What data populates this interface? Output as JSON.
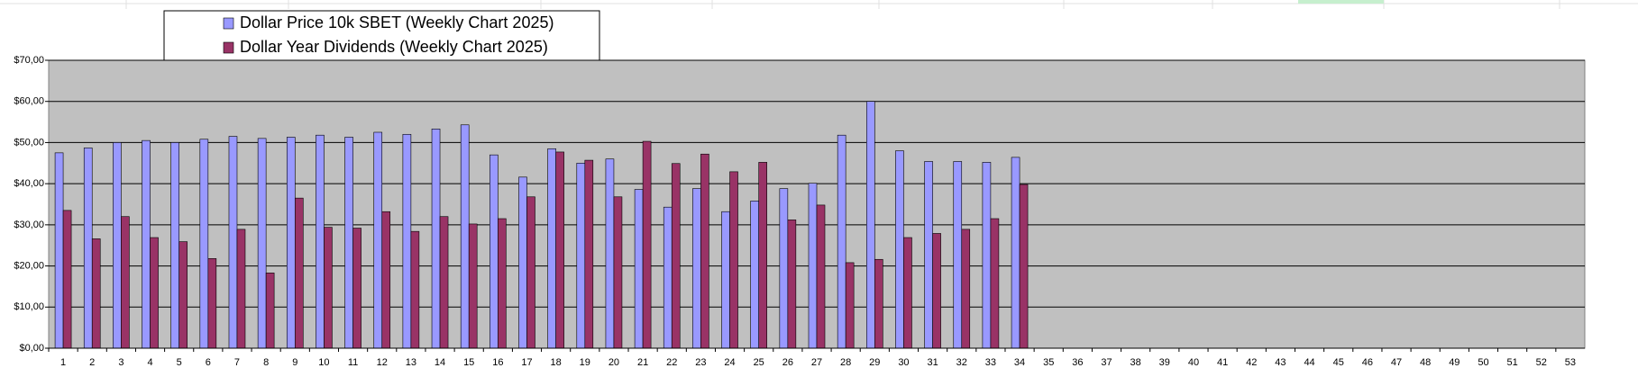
{
  "chart_data": {
    "type": "bar",
    "categories": [
      "1",
      "2",
      "3",
      "4",
      "5",
      "6",
      "7",
      "8",
      "9",
      "10",
      "11",
      "12",
      "13",
      "14",
      "15",
      "16",
      "17",
      "18",
      "19",
      "20",
      "21",
      "22",
      "23",
      "24",
      "25",
      "26",
      "27",
      "28",
      "29",
      "30",
      "31",
      "32",
      "33",
      "34",
      "35",
      "36",
      "37",
      "38",
      "39",
      "40",
      "41",
      "42",
      "43",
      "44",
      "45",
      "46",
      "47",
      "48",
      "49",
      "50",
      "51",
      "52",
      "53"
    ],
    "series": [
      {
        "name": "Dollar Price 10k SBET (Weekly Chart 2025)",
        "color": "#9999ff",
        "values": [
          47.5,
          48.7,
          50,
          50.5,
          50,
          50.8,
          51.5,
          51,
          51.3,
          51.8,
          51.3,
          52.5,
          52,
          53.3,
          54.3,
          47,
          41.6,
          48.5,
          45,
          46,
          38.6,
          34.3,
          38.8,
          33.2,
          35.8,
          38.8,
          40.1,
          51.8,
          60,
          48,
          45.4,
          45.4,
          45.2,
          46.4,
          null,
          null,
          null,
          null,
          null,
          null,
          null,
          null,
          null,
          null,
          null,
          null,
          null,
          null,
          null,
          null,
          null,
          null,
          null
        ]
      },
      {
        "name": "Dollar Year Dividends (Weekly Chart 2025)",
        "color": "#993366",
        "values": [
          33.5,
          26.6,
          32,
          26.9,
          25.9,
          21.8,
          28.9,
          18.3,
          36.5,
          29.4,
          29.2,
          33.2,
          28.4,
          32,
          30.2,
          31.5,
          36.8,
          47.7,
          45.7,
          36.8,
          50.3,
          44.9,
          47.2,
          42.9,
          45.2,
          31.2,
          34.8,
          20.8,
          21.6,
          26.9,
          27.9,
          28.9,
          31.5,
          39.8,
          null,
          null,
          null,
          null,
          null,
          null,
          null,
          null,
          null,
          null,
          null,
          null,
          null,
          null,
          null,
          null,
          null,
          null,
          null
        ]
      }
    ],
    "ylim": [
      0,
      70
    ],
    "yticks": [
      {
        "value": 0,
        "label": "$0,00"
      },
      {
        "value": 10,
        "label": "$10,00"
      },
      {
        "value": 20,
        "label": "$20,00"
      },
      {
        "value": 30,
        "label": "$30,00"
      },
      {
        "value": 40,
        "label": "$40,00"
      },
      {
        "value": 50,
        "label": "$50,00"
      },
      {
        "value": 60,
        "label": "$60,00"
      },
      {
        "value": 70,
        "label": "$70,00"
      }
    ],
    "grid": true,
    "plot_background": "#c0c0c0"
  }
}
